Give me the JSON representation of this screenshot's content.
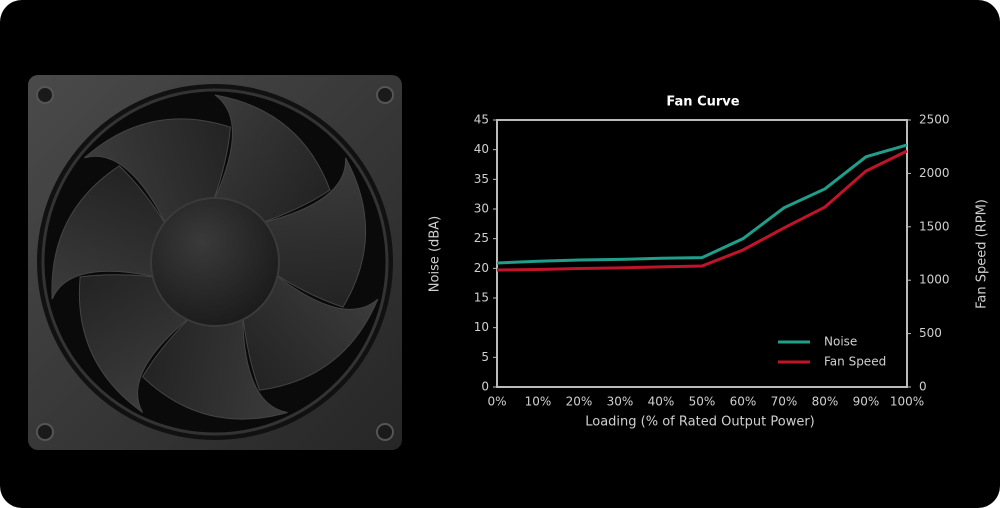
{
  "chart_data": {
    "type": "line",
    "title": "Fan Curve",
    "x_label": "Loading (% of Rated Output Power)",
    "y_label": "Noise (dBA)",
    "y2_label": "Fan Speed (RPM)",
    "categories": [
      "0%",
      "10%",
      "20%",
      "30%",
      "40%",
      "50%",
      "60%",
      "70%",
      "80%",
      "90%",
      "100%"
    ],
    "series": [
      {
        "name": "Noise",
        "color": "#1f9e8a",
        "values": [
          20.9,
          21.2,
          21.4,
          21.5,
          21.7,
          21.8,
          25,
          30.2,
          33.4,
          38.8,
          40.8
        ]
      },
      {
        "name": "Fan Speed",
        "color": "#c0142a",
        "axis": "y2",
        "values": [
          1096,
          1100,
          1110,
          1115,
          1125,
          1133,
          1283,
          1489,
          1685,
          2022,
          2210
        ]
      }
    ],
    "ylim": [
      0,
      45
    ],
    "yticks": [
      0,
      5,
      10,
      15,
      20,
      25,
      30,
      35,
      40,
      45
    ],
    "y2lim": [
      0,
      2500
    ],
    "y2ticks": [
      0,
      500,
      1000,
      1500,
      2000,
      2500
    ],
    "legend": "lower right"
  }
}
